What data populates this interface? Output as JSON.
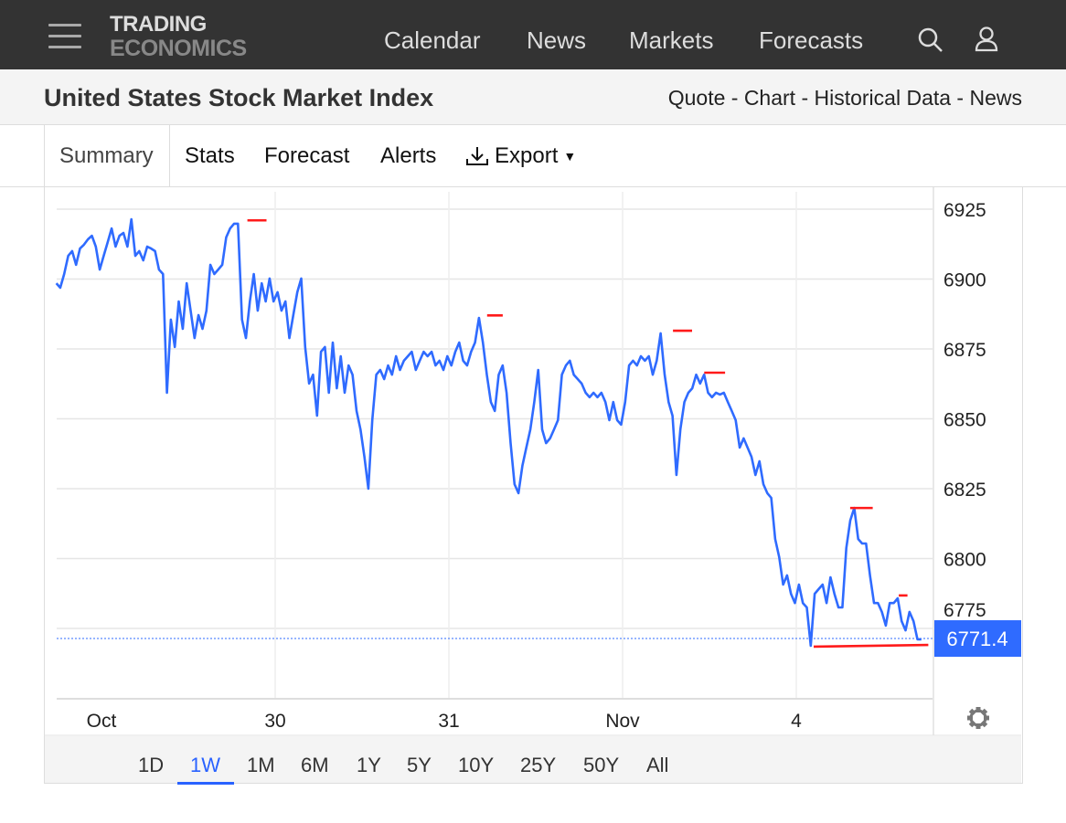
{
  "header": {
    "logo_line1": "TRADING",
    "logo_line2": "ECONOMICS",
    "nav": [
      "Calendar",
      "News",
      "Markets",
      "Forecasts"
    ]
  },
  "subheader": {
    "title": "United States Stock Market Index",
    "links": "Quote - Chart - Historical Data - News"
  },
  "tabs": {
    "summary": "Summary",
    "stats": "Stats",
    "forecast": "Forecast",
    "alerts": "Alerts",
    "export": "Export"
  },
  "ranges": [
    "1D",
    "1W",
    "1M",
    "6M",
    "1Y",
    "5Y",
    "10Y",
    "25Y",
    "50Y",
    "All"
  ],
  "active_range": "1W",
  "colors": {
    "line": "#2f6bff",
    "marker": "#ff1a1a",
    "price_tag": "#2f6bff",
    "header": "#333333"
  },
  "chart_data": {
    "type": "line",
    "x_unit": "trading days (0 = Oct 29)",
    "x_start": -0.26,
    "x_end": 4.72,
    "ylim": [
      6750,
      6930
    ],
    "yticks": [
      6925,
      6900,
      6875,
      6850,
      6825,
      6800,
      6775
    ],
    "xticks": [
      {
        "t": 0,
        "label": "Oct"
      },
      {
        "t": 1,
        "label": "30"
      },
      {
        "t": 2,
        "label": "31"
      },
      {
        "t": 3,
        "label": "Nov"
      },
      {
        "t": 4,
        "label": "4"
      }
    ],
    "last_price": 6771.4,
    "last_price_label": "6771.4",
    "values": [
      6898.5,
      6896.9,
      6901.8,
      6908.3,
      6910.0,
      6905.1,
      6910.9,
      6912.3,
      6914.2,
      6915.5,
      6911.6,
      6903.4,
      6908.3,
      6913.2,
      6918.1,
      6911.6,
      6915.5,
      6916.5,
      6911.6,
      6921.4,
      6908.3,
      6910.0,
      6906.7,
      6911.6,
      6910.9,
      6910.0,
      6903.4,
      6901.8,
      6859.3,
      6885.5,
      6875.7,
      6892.0,
      6882.2,
      6898.5,
      6888.7,
      6878.9,
      6887.1,
      6882.2,
      6888.7,
      6905.1,
      6901.8,
      6903.4,
      6905.1,
      6914.9,
      6918.1,
      6919.8,
      6919.8,
      6885.5,
      6878.9,
      6892.0,
      6901.8,
      6888.7,
      6898.5,
      6892.0,
      6900.2,
      6892.0,
      6895.3,
      6888.7,
      6892.0,
      6878.9,
      6887.1,
      6895.3,
      6900.2,
      6875.7,
      6862.6,
      6865.8,
      6851.1,
      6874.0,
      6875.7,
      6859.3,
      6877.3,
      6860.9,
      6872.4,
      6859.3,
      6869.1,
      6865.8,
      6852.8,
      6846.2,
      6836.4,
      6825.0,
      6849.5,
      6865.8,
      6867.5,
      6864.2,
      6869.1,
      6865.8,
      6872.4,
      6867.5,
      6870.8,
      6872.4,
      6874.0,
      6867.5,
      6870.8,
      6874.0,
      6872.4,
      6874.0,
      6869.1,
      6870.8,
      6867.5,
      6872.4,
      6869.1,
      6874.0,
      6877.3,
      6870.8,
      6869.1,
      6874.0,
      6877.3,
      6886.1,
      6877.3,
      6865.8,
      6856.0,
      6852.8,
      6865.8,
      6869.1,
      6859.3,
      6841.3,
      6826.6,
      6823.4,
      6833.2,
      6839.7,
      6846.2,
      6856.0,
      6867.5,
      6846.2,
      6841.3,
      6843.0,
      6846.2,
      6849.5,
      6865.8,
      6869.1,
      6870.8,
      6865.8,
      6864.2,
      6862.6,
      6859.3,
      6857.7,
      6859.3,
      6857.7,
      6859.3,
      6856.0,
      6849.5,
      6856.0,
      6849.5,
      6847.9,
      6856.0,
      6869.1,
      6870.8,
      6869.1,
      6872.4,
      6870.8,
      6872.4,
      6865.8,
      6870.8,
      6880.6,
      6865.8,
      6856.0,
      6851.1,
      6829.9,
      6846.2,
      6856.0,
      6859.3,
      6860.9,
      6865.8,
      6862.6,
      6865.8,
      6859.3,
      6857.7,
      6859.3,
      6858.7,
      6859.3,
      6856.0,
      6852.8,
      6849.5,
      6839.7,
      6843.0,
      6839.7,
      6836.4,
      6829.9,
      6834.8,
      6826.6,
      6823.4,
      6821.7,
      6807.0,
      6800.5,
      6790.7,
      6794.0,
      6787.4,
      6784.1,
      6790.7,
      6784.1,
      6782.5,
      6768.8,
      6787.4,
      6789.1,
      6790.7,
      6784.1,
      6793.3,
      6787.4,
      6782.5,
      6782.5,
      6803.8,
      6813.6,
      6818.1,
      6807.0,
      6805.4,
      6805.4,
      6794.0,
      6784.1,
      6784.1,
      6780.9,
      6776.0,
      6784.1,
      6784.1,
      6785.8,
      6777.6,
      6774.3,
      6780.9,
      6777.6,
      6771.1,
      6771.1
    ],
    "markers": [
      {
        "t0": 0.84,
        "t1": 0.95,
        "v0": 6921.0,
        "v1": 6921.0
      },
      {
        "t0": 2.22,
        "t1": 2.31,
        "v0": 6887.0,
        "v1": 6887.0
      },
      {
        "t0": 3.29,
        "t1": 3.4,
        "v0": 6881.5,
        "v1": 6881.5
      },
      {
        "t0": 3.47,
        "t1": 3.59,
        "v0": 6866.5,
        "v1": 6866.5
      },
      {
        "t0": 4.31,
        "t1": 4.44,
        "v0": 6818.1,
        "v1": 6818.1
      },
      {
        "t0": 4.59,
        "t1": 4.64,
        "v0": 6786.8,
        "v1": 6786.8
      },
      {
        "t0": 4.1,
        "t1": 4.76,
        "v0": 6768.5,
        "v1": 6769.1
      }
    ]
  }
}
